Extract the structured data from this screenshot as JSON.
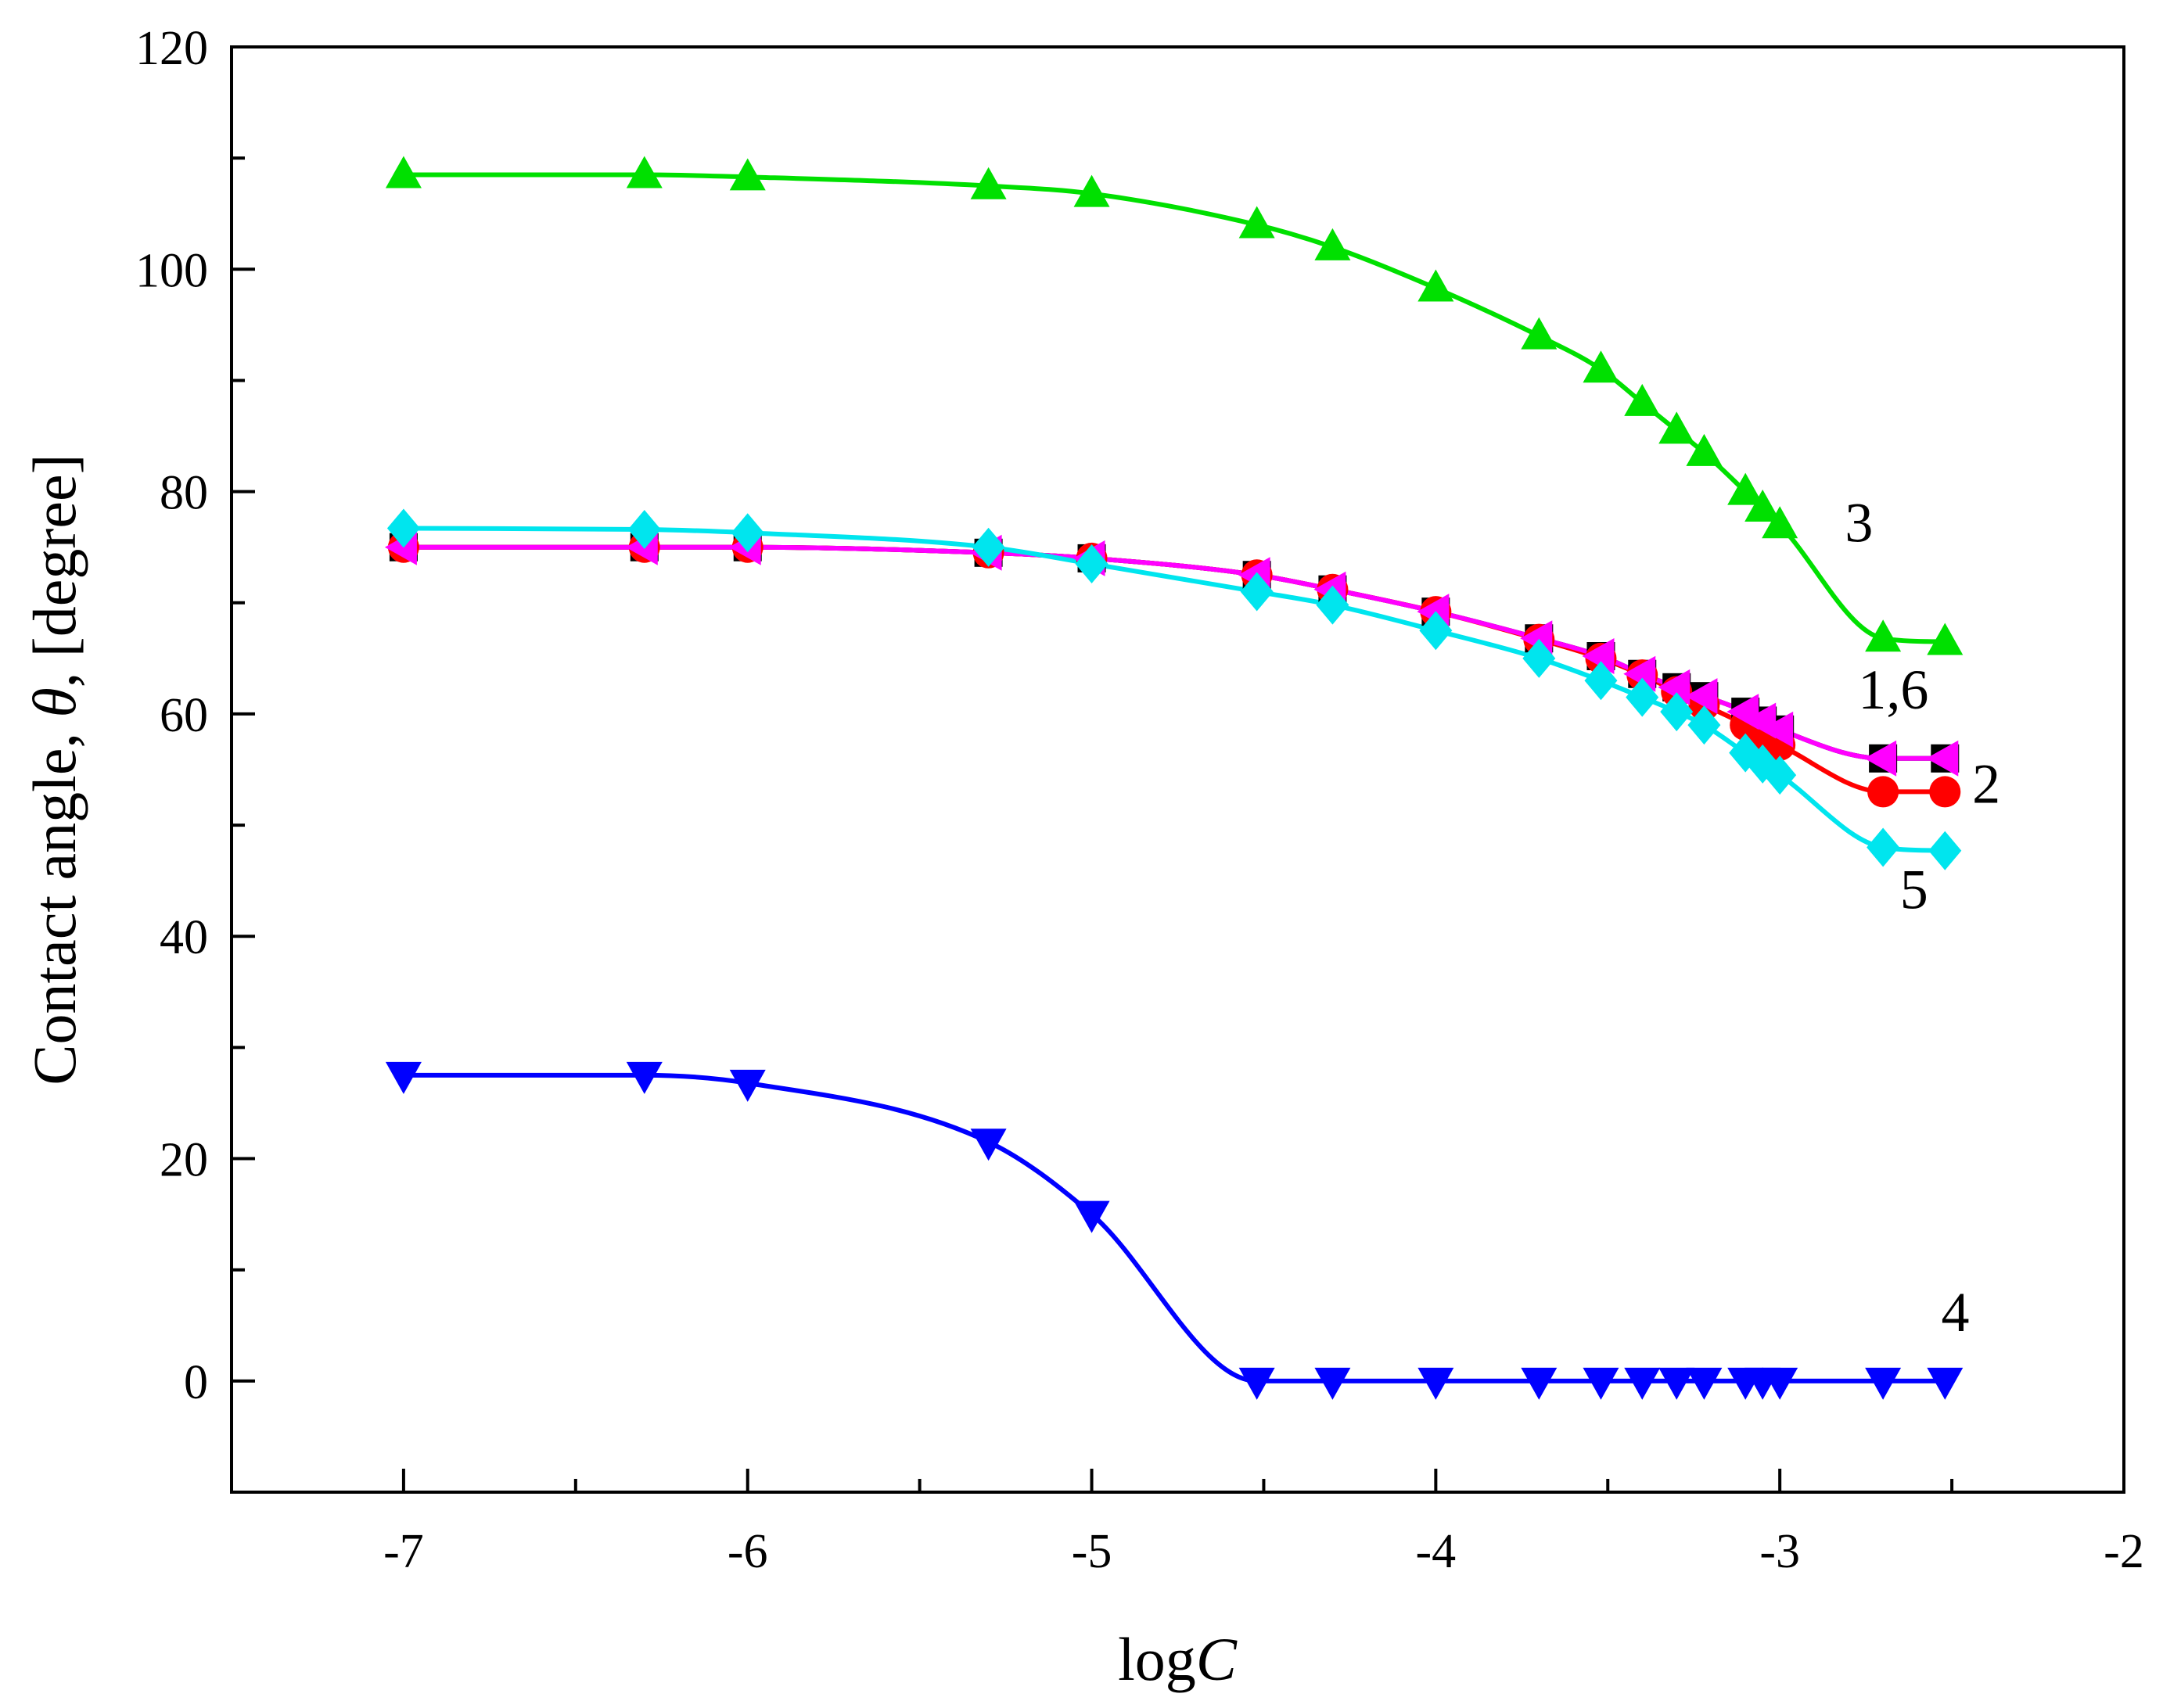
{
  "chart_data": {
    "type": "line",
    "xlabel": "logC",
    "xlabel_parts": [
      "log",
      "C"
    ],
    "ylabel": "Contact angle, θ, [degree]",
    "ylabel_parts": [
      "Contact angle, ",
      "θ",
      ", [degree]"
    ],
    "xlim": [
      -7.5,
      -2
    ],
    "ylim": [
      -10,
      120
    ],
    "xticks": [
      -7,
      -6,
      -5,
      -4,
      -3,
      -2
    ],
    "xtick_labels": [
      "-7",
      "-6",
      "-5",
      "-4",
      "-3",
      "-2"
    ],
    "yticks": [
      0,
      20,
      40,
      60,
      80,
      100,
      120
    ],
    "ytick_labels": [
      "0",
      "20",
      "40",
      "60",
      "80",
      "100",
      "120"
    ],
    "grid": false,
    "series": [
      {
        "name": "1",
        "color": "#000000",
        "marker": "square",
        "x": [
          -7,
          -6.3,
          -6,
          -5.3,
          -5,
          -4.52,
          -4.3,
          -4,
          -3.7,
          -3.52,
          -3.4,
          -3.3,
          -3.22,
          -3.1,
          -3.05,
          -3.0,
          -2.7,
          -2.52
        ],
        "y": [
          75,
          75,
          75,
          74.5,
          74,
          72.5,
          71.2,
          69.2,
          66.8,
          65.2,
          63.6,
          62.4,
          61.6,
          60.2,
          59.4,
          58.6,
          56,
          56
        ]
      },
      {
        "name": "2",
        "color": "#ff0000",
        "marker": "circle",
        "x": [
          -7,
          -6.3,
          -6,
          -5.3,
          -5,
          -4.52,
          -4.3,
          -4,
          -3.7,
          -3.52,
          -3.4,
          -3.3,
          -3.22,
          -3.1,
          -3.05,
          -3.0,
          -2.7,
          -2.52
        ],
        "y": [
          75,
          75,
          75,
          74.5,
          74,
          72.5,
          71.2,
          69.2,
          66.7,
          65,
          63.5,
          62,
          60.8,
          59,
          58,
          57.2,
          53,
          53
        ]
      },
      {
        "name": "3",
        "color": "#00e000",
        "marker": "triangle-up",
        "x": [
          -7,
          -6.3,
          -6,
          -5.3,
          -5,
          -4.52,
          -4.3,
          -4,
          -3.7,
          -3.52,
          -3.4,
          -3.3,
          -3.22,
          -3.1,
          -3.05,
          -3.0,
          -2.7,
          -2.52
        ],
        "y": [
          108.5,
          108.5,
          108.3,
          107.5,
          106.8,
          104,
          102,
          98.3,
          94,
          91,
          88,
          85.5,
          83.5,
          80,
          78.5,
          77,
          66.8,
          66.5
        ]
      },
      {
        "name": "4",
        "color": "#0000ff",
        "marker": "triangle-down",
        "x": [
          -7,
          -6.3,
          -6,
          -5.3,
          -5,
          -4.52,
          -4.3,
          -4,
          -3.7,
          -3.52,
          -3.4,
          -3.3,
          -3.22,
          -3.1,
          -3.05,
          -3.0,
          -2.7,
          -2.52
        ],
        "y": [
          27.5,
          27.5,
          26.8,
          21.5,
          15,
          0,
          0,
          0,
          0,
          0,
          0,
          0,
          0,
          0,
          0,
          0,
          0,
          0
        ]
      },
      {
        "name": "5",
        "color": "#00e5ee",
        "marker": "diamond",
        "x": [
          -7,
          -6.3,
          -6,
          -5.3,
          -5,
          -4.52,
          -4.3,
          -4,
          -3.7,
          -3.52,
          -3.4,
          -3.3,
          -3.22,
          -3.1,
          -3.05,
          -3.0,
          -2.7,
          -2.52
        ],
        "y": [
          76.7,
          76.6,
          76.3,
          75,
          73.5,
          71,
          69.8,
          67.5,
          65,
          63,
          61.5,
          60.2,
          59,
          56.5,
          55.5,
          54.5,
          48,
          47.7
        ]
      },
      {
        "name": "6",
        "color": "#ff00ff",
        "marker": "triangle-left",
        "x": [
          -7,
          -6.3,
          -6,
          -5.3,
          -5,
          -4.52,
          -4.3,
          -4,
          -3.7,
          -3.52,
          -3.4,
          -3.3,
          -3.22,
          -3.1,
          -3.05,
          -3.0,
          -2.7,
          -2.52
        ],
        "y": [
          75,
          75,
          75,
          74.5,
          74,
          72.5,
          71.2,
          69.2,
          66.8,
          65.2,
          63.6,
          62.4,
          61.6,
          60.2,
          59.4,
          58.6,
          56,
          56
        ]
      }
    ],
    "annotations": [
      {
        "text": "3",
        "x": -2.77,
        "y": 75.5
      },
      {
        "text": "1,6",
        "x": -2.67,
        "y": 60.5
      },
      {
        "text": "2",
        "x": -2.4,
        "y": 52
      },
      {
        "text": "5",
        "x": -2.61,
        "y": 42.5
      },
      {
        "text": "4",
        "x": -2.49,
        "y": 4.5
      }
    ]
  }
}
